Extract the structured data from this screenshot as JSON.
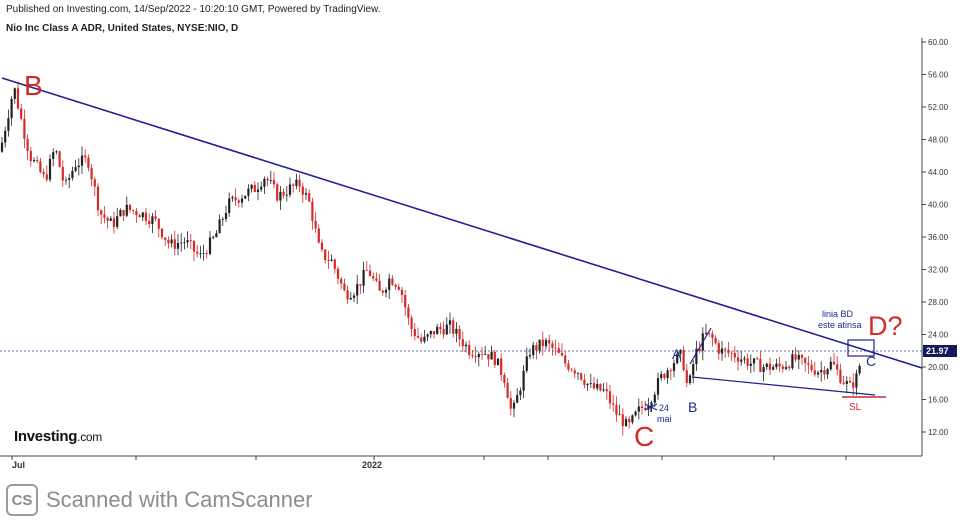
{
  "header": {
    "published": "Published on Investing.com, 14/Sep/2022 - 10:20:10 GMT, Powered by TradingView.",
    "title": "Nio Inc Class A ADR, United States, NYSE:NIO, D"
  },
  "logo": {
    "name": "Investing",
    "suffix": ".com"
  },
  "watermark": {
    "badge": "CS",
    "text": "Scanned with CamScanner"
  },
  "colors": {
    "up": "#222222",
    "down": "#d42a2a",
    "trendline": "#1f1f8f",
    "wave_red": "#d42a2a",
    "wave_blue": "#1f2a8f",
    "price_badge": "#111a5a"
  },
  "chart_data": {
    "type": "candlestick",
    "x_ticks": [
      "Jul",
      "2022"
    ],
    "y_ticks": [
      "60.00",
      "56.00",
      "52.00",
      "48.00",
      "44.00",
      "40.00",
      "36.00",
      "32.00",
      "28.00",
      "24.00",
      "20.00",
      "16.00",
      "12.00"
    ],
    "ylim": [
      9.5,
      60.5
    ],
    "current_price": "21.97",
    "price_path": [
      [
        0,
        46.5
      ],
      [
        14,
        54.5
      ],
      [
        22,
        50
      ],
      [
        30,
        46
      ],
      [
        45,
        43
      ],
      [
        55,
        47
      ],
      [
        65,
        42
      ],
      [
        75,
        45
      ],
      [
        88,
        45.5
      ],
      [
        100,
        39
      ],
      [
        112,
        37.5
      ],
      [
        125,
        39.5
      ],
      [
        140,
        39
      ],
      [
        155,
        38
      ],
      [
        170,
        35
      ],
      [
        185,
        35.5
      ],
      [
        200,
        33.5
      ],
      [
        215,
        36
      ],
      [
        228,
        40
      ],
      [
        240,
        41
      ],
      [
        255,
        42
      ],
      [
        265,
        43.5
      ],
      [
        278,
        41
      ],
      [
        290,
        42
      ],
      [
        300,
        42.5
      ],
      [
        310,
        40
      ],
      [
        320,
        34
      ],
      [
        332,
        33
      ],
      [
        345,
        29
      ],
      [
        355,
        29.5
      ],
      [
        368,
        32
      ],
      [
        380,
        29
      ],
      [
        390,
        31
      ],
      [
        400,
        30
      ],
      [
        410,
        25
      ],
      [
        422,
        23
      ],
      [
        435,
        24.5
      ],
      [
        450,
        25
      ],
      [
        460,
        23.5
      ],
      [
        470,
        22
      ],
      [
        482,
        22
      ],
      [
        495,
        21
      ],
      [
        505,
        18.5
      ],
      [
        512,
        14
      ],
      [
        520,
        17.5
      ],
      [
        530,
        22
      ],
      [
        545,
        23
      ],
      [
        555,
        22
      ],
      [
        565,
        20.5
      ],
      [
        578,
        19.5
      ],
      [
        590,
        17.5
      ],
      [
        605,
        17
      ],
      [
        615,
        14.5
      ],
      [
        622,
        13.5
      ],
      [
        628,
        12.5
      ],
      [
        638,
        14.5
      ],
      [
        650,
        16
      ],
      [
        660,
        18.5
      ],
      [
        672,
        20.5
      ],
      [
        682,
        21.5
      ],
      [
        688,
        17
      ],
      [
        695,
        21.5
      ],
      [
        705,
        24
      ],
      [
        712,
        23.5
      ],
      [
        720,
        22
      ],
      [
        735,
        21.5
      ],
      [
        750,
        20.5
      ],
      [
        765,
        20
      ],
      [
        780,
        20
      ],
      [
        795,
        21
      ],
      [
        808,
        20
      ],
      [
        820,
        19.5
      ],
      [
        832,
        20.5
      ],
      [
        842,
        18.5
      ],
      [
        850,
        17.5
      ],
      [
        858,
        19
      ],
      [
        862,
        22
      ]
    ],
    "annotations": {
      "wave_labels": [
        {
          "text": "B",
          "color": "red"
        },
        {
          "text": "C",
          "color": "red"
        },
        {
          "text": "D?",
          "color": "red"
        },
        {
          "text": "A",
          "color": "blue"
        },
        {
          "text": "B",
          "color": "blue"
        },
        {
          "text": "C",
          "color": "blue"
        }
      ],
      "notes": {
        "linia1": "linia BD",
        "linia2": "este atinsa",
        "date1": "24",
        "date2": "mai",
        "sl": "SL"
      }
    }
  }
}
